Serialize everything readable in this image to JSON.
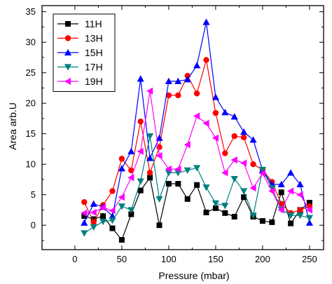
{
  "chart_data": {
    "type": "line",
    "xlabel": "Pressure (mbar)",
    "ylabel": "Area arb.U",
    "xlim": [
      -35,
      265
    ],
    "ylim": [
      -4,
      36
    ],
    "x_ticks": [
      0,
      50,
      100,
      150,
      200,
      250
    ],
    "y_ticks": [
      0,
      5,
      10,
      15,
      20,
      25,
      30,
      35
    ],
    "legend_position": "top-left",
    "grid": false,
    "x": [
      10,
      20,
      30,
      40,
      50,
      60,
      70,
      80,
      90,
      100,
      110,
      120,
      130,
      140,
      150,
      160,
      170,
      180,
      190,
      200,
      210,
      220,
      230,
      240,
      250
    ],
    "series": [
      {
        "name": "11H",
        "color": "#000000",
        "marker": "square",
        "values": [
          1.5,
          1.0,
          1.5,
          -0.5,
          -2.4,
          1.8,
          5.7,
          7.8,
          0.0,
          6.8,
          6.8,
          4.3,
          6.6,
          2.1,
          2.8,
          2.0,
          1.4,
          4.6,
          1.4,
          0.7,
          0.5,
          5.4,
          0.3,
          2.5,
          3.7
        ]
      },
      {
        "name": "13H",
        "color": "#ff0000",
        "marker": "circle",
        "values": [
          3.8,
          0.5,
          3.3,
          5.6,
          10.9,
          9.0,
          17.0,
          8.6,
          12.8,
          21.3,
          21.3,
          24.5,
          21.6,
          27.1,
          18.4,
          11.8,
          14.6,
          14.4,
          10.0,
          9.1,
          7.1,
          3.5,
          2.0,
          2.5,
          3.1
        ]
      },
      {
        "name": "15H",
        "color": "#0000ff",
        "marker": "triangle-up",
        "values": [
          0.4,
          3.5,
          3.0,
          1.5,
          9.3,
          12.1,
          24.0,
          11.0,
          14.3,
          23.6,
          23.6,
          23.9,
          26.2,
          33.3,
          21.0,
          18.5,
          17.8,
          15.3,
          14.0,
          9.0,
          6.7,
          6.7,
          8.6,
          6.7,
          0.4
        ]
      },
      {
        "name": "17H",
        "color": "#008080",
        "marker": "triangle-down",
        "values": [
          -1.3,
          -0.3,
          0.6,
          0.8,
          3.1,
          2.5,
          7.2,
          14.6,
          4.3,
          8.6,
          8.6,
          9.0,
          9.4,
          6.2,
          3.6,
          3.2,
          7.6,
          5.6,
          1.6,
          9.1,
          6.1,
          2.6,
          1.6,
          1.6,
          1.2
        ]
      },
      {
        "name": "19H",
        "color": "#ff00ff",
        "marker": "triangle-left",
        "values": [
          2.0,
          2.1,
          2.9,
          2.4,
          4.6,
          7.8,
          12.1,
          22.0,
          11.4,
          9.2,
          9.2,
          13.2,
          17.9,
          16.7,
          14.3,
          8.6,
          10.7,
          10.2,
          6.1,
          8.5,
          5.6,
          2.5,
          5.6,
          5.0,
          2.5
        ]
      }
    ]
  }
}
